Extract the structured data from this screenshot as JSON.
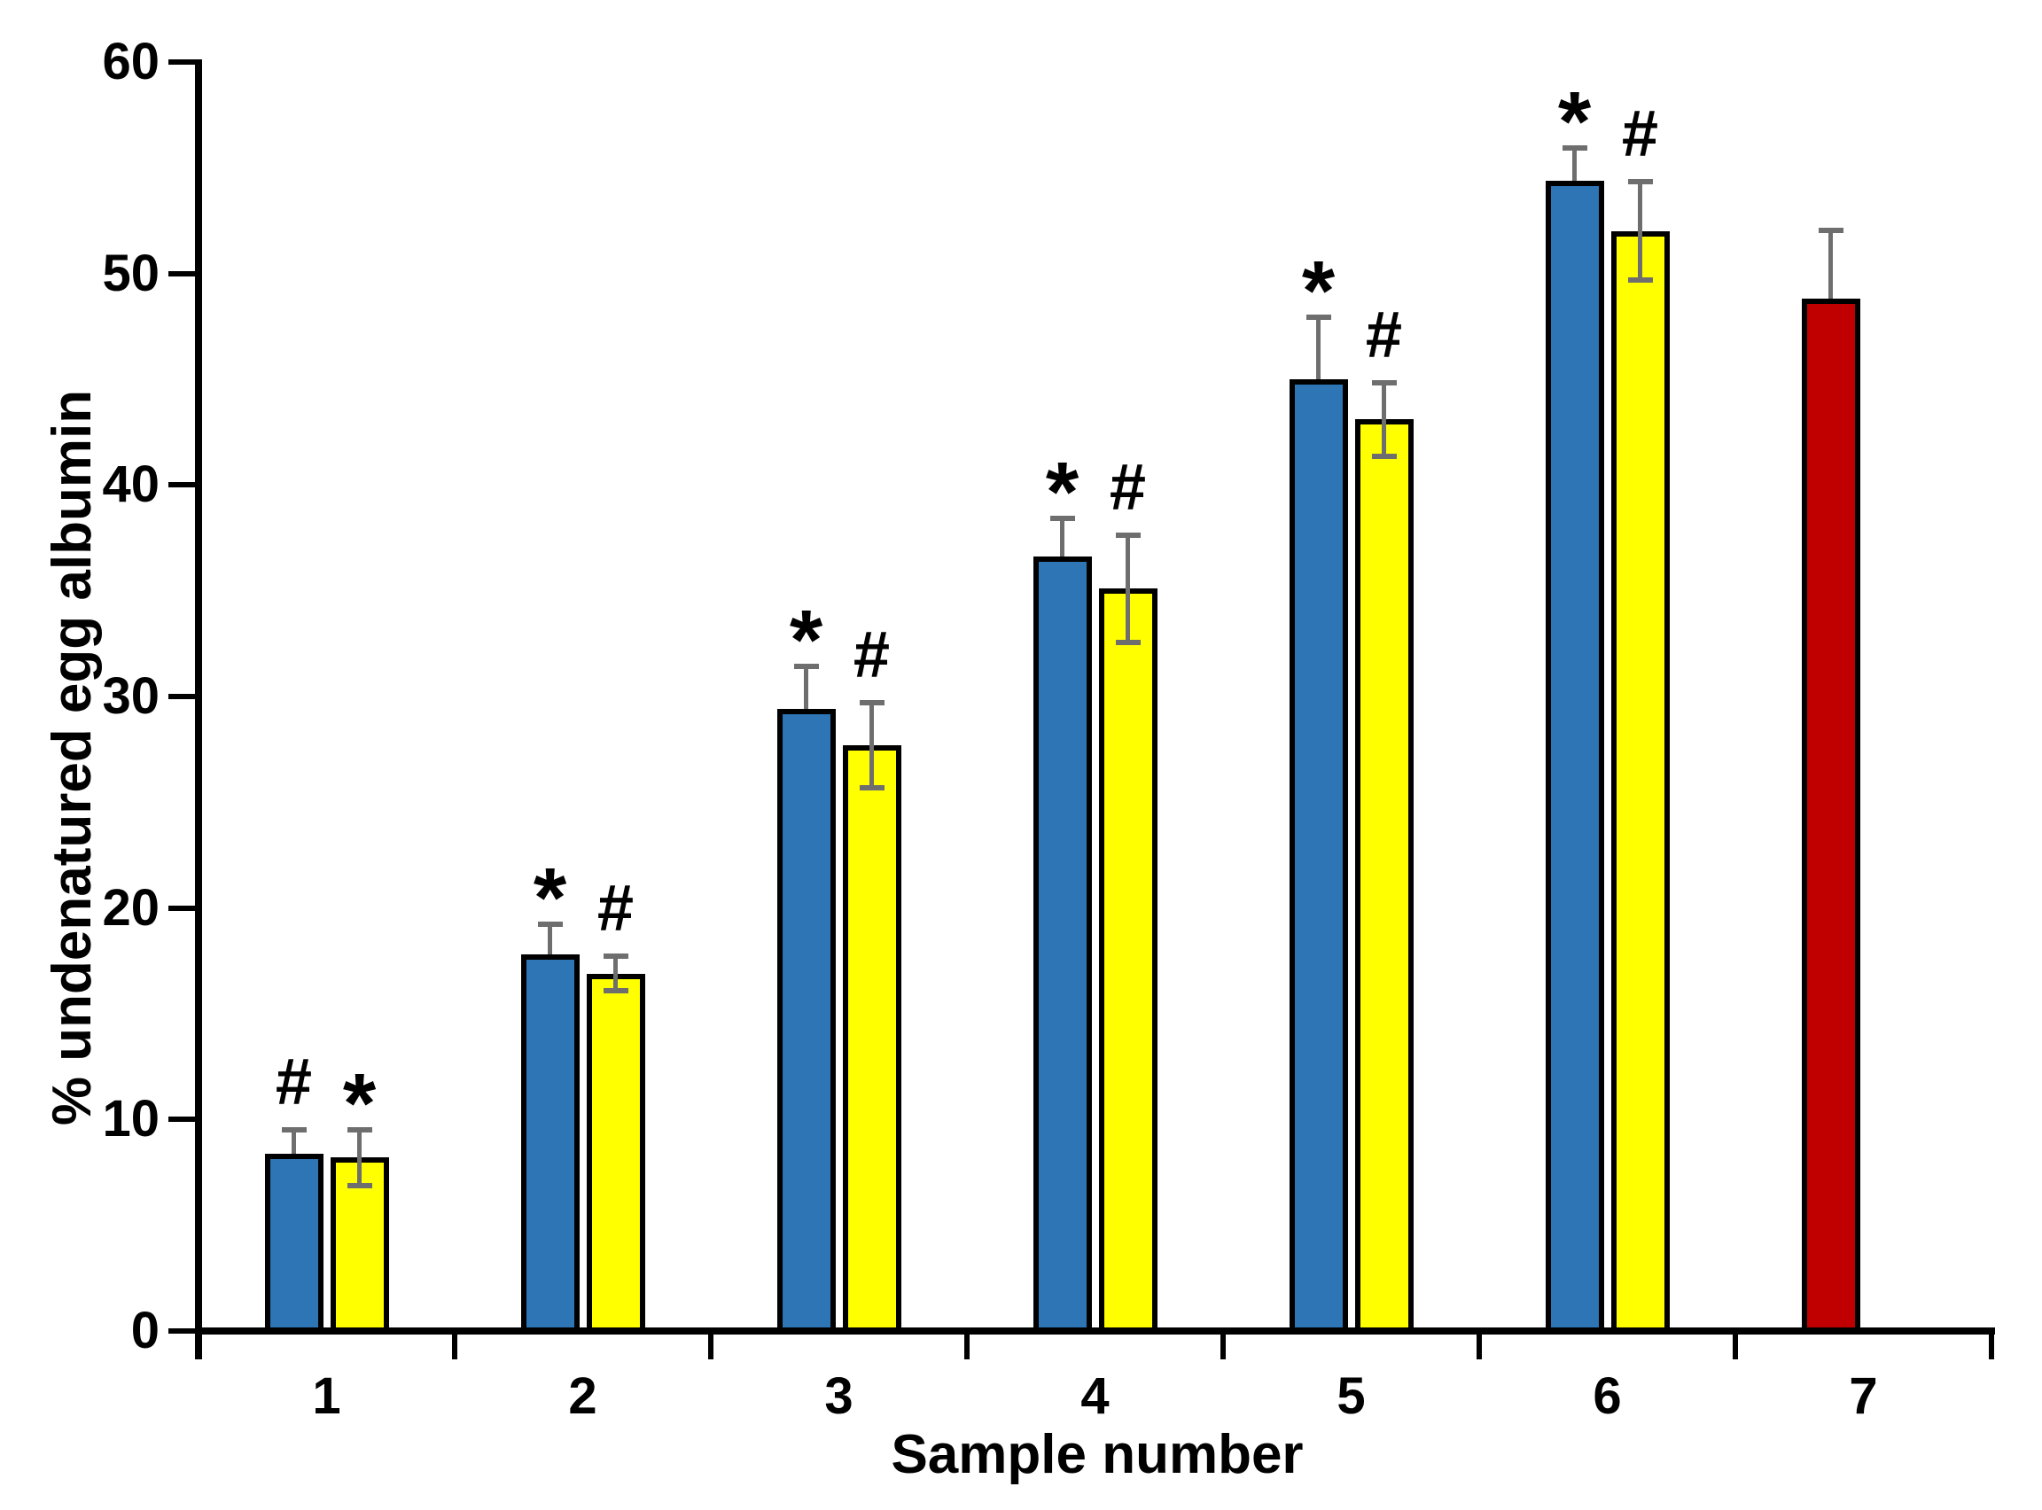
{
  "chart_data": {
    "type": "bar",
    "title": "",
    "xlabel": "Sample number",
    "ylabel": "% undenatured egg albumin",
    "ylim": [
      0,
      60
    ],
    "yticks": [
      0,
      10,
      20,
      30,
      40,
      50,
      60
    ],
    "categories": [
      "1",
      "2",
      "3",
      "4",
      "5",
      "6",
      "7"
    ],
    "grid": "off",
    "legend": "none",
    "axis_color": "#000000",
    "error_bar_color": "#6E6E6E",
    "series": [
      {
        "name": "blue-bars",
        "slot": "left",
        "color": "#2E75B6",
        "values": [
          8.4,
          17.8,
          29.4,
          36.6,
          45.0,
          54.4,
          null
        ],
        "err_up": [
          1.0,
          1.3,
          1.9,
          1.7,
          2.8,
          1.4,
          null
        ],
        "err_down": [
          null,
          null,
          null,
          null,
          null,
          null,
          null
        ],
        "annotations": [
          "#",
          "*",
          "*",
          "*",
          "*",
          "*",
          null
        ]
      },
      {
        "name": "yellow-bars",
        "slot": "right",
        "color": "#FFFF00",
        "values": [
          8.2,
          16.9,
          27.7,
          35.1,
          43.1,
          52.0,
          null
        ],
        "err_up": [
          1.2,
          0.7,
          1.9,
          2.4,
          1.6,
          2.2,
          null
        ],
        "err_down": [
          1.2,
          0.7,
          1.9,
          2.4,
          1.6,
          2.2,
          null
        ],
        "annotations": [
          "*",
          "#",
          "#",
          "#",
          "#",
          "#",
          null
        ]
      },
      {
        "name": "red-bar",
        "slot": "left",
        "color": "#C00000",
        "values": [
          null,
          null,
          null,
          null,
          null,
          null,
          48.8
        ],
        "err_up": [
          null,
          null,
          null,
          null,
          null,
          null,
          3.1
        ],
        "err_down": [
          null,
          null,
          null,
          null,
          null,
          null,
          null
        ],
        "annotations": [
          null,
          null,
          null,
          null,
          null,
          null,
          null
        ]
      }
    ]
  }
}
